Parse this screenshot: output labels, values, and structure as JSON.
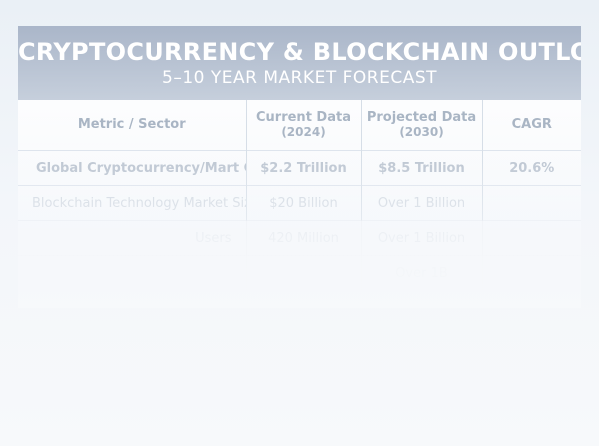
{
  "header": {
    "title": "CRYPTOCURRENCY & BLOCKCHAIN OUTLOOK",
    "subtitle": "5–10 YEAR MARKET FORECAST"
  },
  "table": {
    "columns": [
      {
        "label": "Metric / Sector",
        "sub": ""
      },
      {
        "label": "Current Data",
        "sub": "(2024)"
      },
      {
        "label": "Projected Data",
        "sub": "(2030)"
      },
      {
        "label": "CAGR",
        "sub": ""
      }
    ],
    "rows": [
      {
        "metric": "Global Cryptocurrency/Mart Cap",
        "current": "$2.2 Trillion",
        "projected": "$8.5 Trillion",
        "cagr": "20.6%"
      },
      {
        "metric": "Blockchain Technology Market Size",
        "current": "$20 Billion",
        "projected": "Over 1 Billion",
        "cagr": ""
      },
      {
        "metric": "Users",
        "current": "420 Million",
        "projected": "Over 1 Billion",
        "cagr": ""
      },
      {
        "metric": "",
        "current": "",
        "projected": "Over 1B",
        "cagr": ""
      }
    ]
  }
}
